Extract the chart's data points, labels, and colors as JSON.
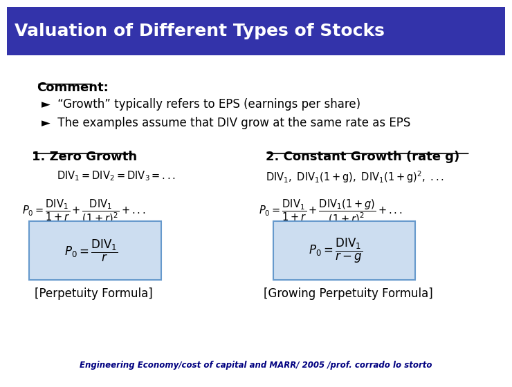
{
  "title": "Valuation of Different Types of Stocks",
  "title_bg_color": "#3333AA",
  "title_text_color": "#FFFFFF",
  "bg_color": "#FFFFFF",
  "comment_label": "Comment:",
  "bullet1": "►  “Growth” typically refers to EPS (earnings per share)",
  "bullet2": "►  The examples assume that DIV grow at the same rate as EPS",
  "section1_title": "1. Zero Growth",
  "section2_title": "2. Constant Growth (rate g)",
  "zero_eq1": "$\\mathrm{DIV_1 = DIV_2 = DIV_3 = ...}$",
  "zero_eq2": "$P_0 = \\dfrac{\\mathrm{DIV_1}}{1+r} + \\dfrac{\\mathrm{DIV_1}}{(1+r)^2} + ...$",
  "zero_box": "$P_0 = \\dfrac{\\mathrm{DIV_1}}{r}$",
  "zero_label": "[Perpetuity Formula]",
  "const_eq1": "$\\mathrm{DIV_1,\\ DIV_1(1+g),\\ DIV_1(1+g)^2,\\ ...}$",
  "const_eq2": "$P_0 = \\dfrac{\\mathrm{DIV_1}}{1+r} + \\dfrac{\\mathrm{DIV_1}(1+g)}{(1+r)^2} + ...$",
  "const_box": "$P_0 = \\dfrac{\\mathrm{DIV_1}}{r-g}$",
  "const_label": "[Growing Perpetuity Formula]",
  "footer": "Engineering Economy/cost of capital and MARR/ 2005 /prof. corrado lo storto",
  "footer_color": "#000080",
  "box_bg_color": "#CCDDF0",
  "box_edge_color": "#6699CC"
}
